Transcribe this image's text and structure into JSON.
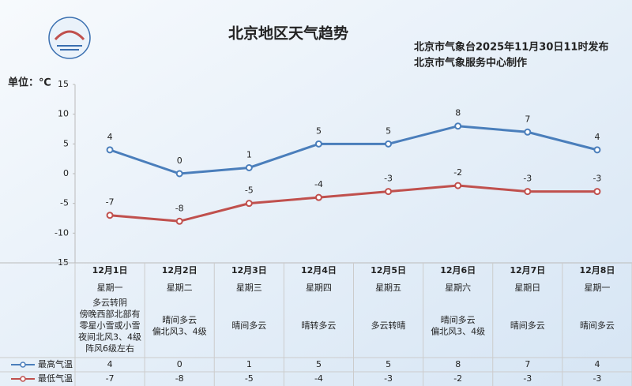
{
  "chart_data": {
    "type": "line",
    "title": "北京地区天气趋势",
    "subtitle": [
      "北京市气象台2025年11月30日11时发布",
      "北京市气象服务中心制作"
    ],
    "unit_label": "单位：℃",
    "categories": [
      "12月1日",
      "12月2日",
      "12月3日",
      "12月4日",
      "12月5日",
      "12月6日",
      "12月7日",
      "12月8日"
    ],
    "weekdays": [
      "星期一",
      "星期二",
      "星期三",
      "星期四",
      "星期五",
      "星期六",
      "星期日",
      "星期一"
    ],
    "weather": [
      [
        "多云转阴",
        "傍晚西部北部有",
        "零星小雪或小雪",
        "夜间北风3、4级",
        "阵风6级左右"
      ],
      [
        "晴间多云",
        "偏北风3、4级"
      ],
      [
        "晴间多云"
      ],
      [
        "晴转多云"
      ],
      [
        "多云转晴"
      ],
      [
        "晴间多云",
        "偏北风3、4级"
      ],
      [
        "晴间多云"
      ],
      [
        "晴间多云"
      ]
    ],
    "series": [
      {
        "name": "最高气温",
        "color": "#4a7ebb",
        "values": [
          4,
          0,
          1,
          5,
          5,
          8,
          7,
          4
        ]
      },
      {
        "name": "最低气温",
        "color": "#c0504d",
        "values": [
          -7,
          -8,
          -5,
          -4,
          -3,
          -2,
          -3,
          -3
        ]
      }
    ],
    "ylim": [
      -15,
      15
    ],
    "yticks": [
      15,
      10,
      5,
      0,
      -5,
      -10,
      -15
    ],
    "grid": false
  }
}
